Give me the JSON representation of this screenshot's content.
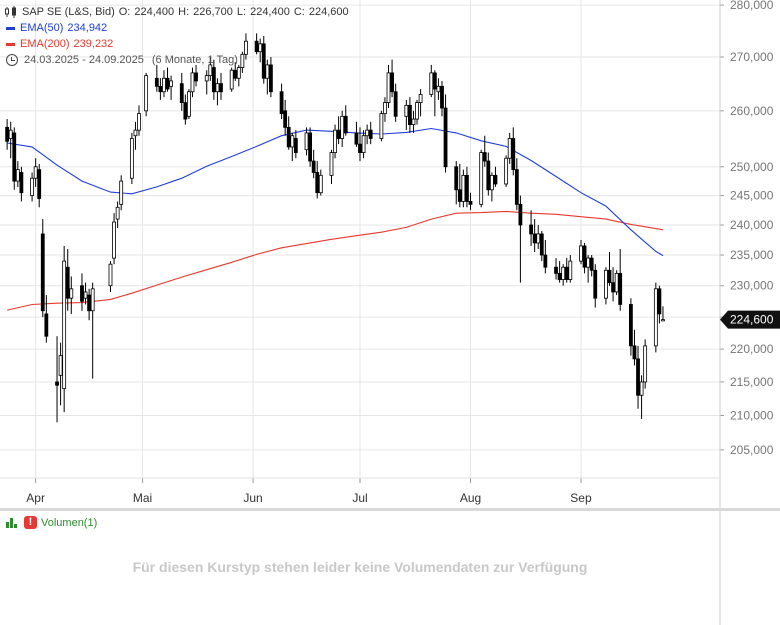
{
  "header": {
    "instrument": "SAP SE (L&S, Bid)",
    "open_label": "O:",
    "open": "224,400",
    "high_label": "H:",
    "high": "226,700",
    "low_label": "L:",
    "low": "224,400",
    "close_label": "C:",
    "close": "224,600",
    "ema50_label": "EMA(50)",
    "ema50_value": "234,942",
    "ema200_label": "EMA(200)",
    "ema200_value": "239,232",
    "range_text": "24.03.2025 - 24.09.2025",
    "period_text": "(6 Monate, 1 Tag)"
  },
  "colors": {
    "candle": "#000000",
    "ema50": "#1e3fd8",
    "ema200": "#e8392e",
    "grid": "#e6e6e6",
    "volume": "#2e8b2e"
  },
  "current_price_label": "224,600",
  "volume": {
    "label": "Volumen(1)",
    "message": "Für diesen Kurstyp stehen leider keine Volumendaten zur Verfügung"
  },
  "chart_data": {
    "type": "candlestick",
    "y_scale": "log",
    "ylim": [
      201000,
      281000
    ],
    "y_ticks": [
      205000,
      210000,
      215000,
      220000,
      225000,
      230000,
      235000,
      240000,
      245000,
      250000,
      260000,
      270000,
      280000
    ],
    "y_tick_labels": [
      "205,000",
      "210,000",
      "215,000",
      "220,000",
      "225,000",
      "230,000",
      "235,000",
      "240,000",
      "245,000",
      "250,000",
      "260,000",
      "270,000",
      "280,000"
    ],
    "x_tick_labels": [
      "Apr",
      "Mai",
      "Jun",
      "Jul",
      "Aug",
      "Sep"
    ],
    "x_tick_dates": [
      "2025-04-01",
      "2025-05-01",
      "2025-06-01",
      "2025-07-01",
      "2025-08-01",
      "2025-09-01"
    ],
    "date_range": [
      "2025-03-24",
      "2025-09-24"
    ],
    "candles": [
      [
        "2025-03-24",
        257.0,
        258.5,
        253.0,
        254.5
      ],
      [
        "2025-03-25",
        255.0,
        258.0,
        251.5,
        256.5
      ],
      [
        "2025-03-26",
        256.0,
        257.0,
        246.0,
        247.5
      ],
      [
        "2025-03-27",
        247.5,
        251.0,
        246.5,
        249.5
      ],
      [
        "2025-03-28",
        249.0,
        250.0,
        244.0,
        245.5
      ],
      [
        "2025-03-31",
        245.0,
        249.0,
        244.0,
        248.0
      ],
      [
        "2025-04-01",
        248.0,
        251.5,
        246.5,
        250.0
      ],
      [
        "2025-04-02",
        249.5,
        250.5,
        243.0,
        244.5
      ],
      [
        "2025-04-03",
        238.5,
        241.0,
        225.0,
        226.0
      ],
      [
        "2025-04-04",
        225.5,
        228.5,
        221.0,
        222.0
      ],
      [
        "2025-04-07",
        215.0,
        222.0,
        209.0,
        214.5
      ],
      [
        "2025-04-08",
        216.0,
        221.0,
        211.5,
        219.0
      ],
      [
        "2025-04-09",
        214.0,
        236.5,
        210.5,
        234.0
      ],
      [
        "2025-04-10",
        233.0,
        236.0,
        226.0,
        228.0
      ],
      [
        "2025-04-11",
        228.0,
        231.5,
        225.5,
        229.5
      ],
      [
        "2025-04-14",
        230.0,
        232.0,
        226.0,
        227.5
      ],
      [
        "2025-04-15",
        228.0,
        230.5,
        227.0,
        229.0
      ],
      [
        "2025-04-16",
        228.5,
        229.5,
        224.5,
        226.0
      ],
      [
        "2025-04-17",
        226.0,
        230.5,
        215.5,
        229.5
      ],
      [
        "2025-04-22",
        230.0,
        234.0,
        229.0,
        233.5
      ],
      [
        "2025-04-23",
        234.5,
        242.0,
        233.5,
        240.5
      ],
      [
        "2025-04-24",
        241.0,
        244.0,
        239.5,
        243.0
      ],
      [
        "2025-04-25",
        243.5,
        248.5,
        242.5,
        247.5
      ],
      [
        "2025-04-28",
        248.0,
        256.0,
        247.0,
        255.0
      ],
      [
        "2025-04-29",
        255.5,
        258.0,
        253.0,
        256.5
      ],
      [
        "2025-04-30",
        256.5,
        261.0,
        255.5,
        259.5
      ],
      [
        "2025-05-02",
        260.0,
        267.0,
        259.0,
        266.5
      ],
      [
        "2025-05-05",
        266.0,
        268.5,
        263.5,
        264.5
      ],
      [
        "2025-05-06",
        264.5,
        266.0,
        262.0,
        263.5
      ],
      [
        "2025-05-07",
        263.5,
        267.5,
        262.5,
        266.0
      ],
      [
        "2025-05-08",
        266.0,
        268.0,
        263.5,
        264.0
      ],
      [
        "2025-05-09",
        264.5,
        266.5,
        262.0,
        265.5
      ],
      [
        "2025-05-12",
        265.0,
        267.0,
        260.0,
        261.5
      ],
      [
        "2025-05-13",
        261.5,
        263.0,
        257.5,
        258.5
      ],
      [
        "2025-05-14",
        259.0,
        264.0,
        258.5,
        263.5
      ],
      [
        "2025-05-15",
        263.5,
        268.0,
        262.5,
        267.0
      ],
      [
        "2025-05-16",
        267.0,
        268.5,
        264.5,
        265.5
      ],
      [
        "2025-05-19",
        265.5,
        267.5,
        263.0,
        266.5
      ],
      [
        "2025-05-20",
        266.5,
        270.0,
        265.5,
        268.5
      ],
      [
        "2025-05-21",
        268.0,
        269.5,
        262.0,
        263.5
      ],
      [
        "2025-05-22",
        263.5,
        266.0,
        261.0,
        265.0
      ],
      [
        "2025-05-23",
        265.0,
        267.0,
        262.0,
        263.5
      ],
      [
        "2025-05-26",
        264.0,
        268.0,
        263.5,
        267.5
      ],
      [
        "2025-05-27",
        267.5,
        269.0,
        265.5,
        266.0
      ],
      [
        "2025-05-28",
        266.0,
        268.5,
        264.5,
        268.0
      ],
      [
        "2025-05-29",
        268.0,
        271.0,
        267.0,
        270.5
      ],
      [
        "2025-05-30",
        270.5,
        274.5,
        269.5,
        273.0
      ],
      [
        "2025-06-02",
        273.0,
        274.5,
        270.5,
        271.0
      ],
      [
        "2025-06-03",
        271.0,
        273.5,
        269.0,
        272.5
      ],
      [
        "2025-06-04",
        272.5,
        274.0,
        265.0,
        266.0
      ],
      [
        "2025-06-05",
        266.0,
        269.5,
        263.0,
        268.5
      ],
      [
        "2025-06-06",
        268.5,
        270.0,
        262.5,
        263.5
      ],
      [
        "2025-06-09",
        263.5,
        265.0,
        258.5,
        259.5
      ],
      [
        "2025-06-10",
        260.0,
        262.0,
        255.5,
        257.0
      ],
      [
        "2025-06-11",
        257.0,
        259.0,
        253.0,
        253.5
      ],
      [
        "2025-06-12",
        253.5,
        256.0,
        251.0,
        255.5
      ],
      [
        "2025-06-13",
        255.0,
        256.5,
        251.5,
        252.5
      ],
      [
        "2025-06-16",
        253.0,
        257.0,
        252.0,
        256.0
      ],
      [
        "2025-06-17",
        256.0,
        257.0,
        250.0,
        251.0
      ],
      [
        "2025-06-18",
        251.0,
        253.0,
        248.0,
        249.0
      ],
      [
        "2025-06-19",
        249.0,
        251.0,
        244.5,
        245.5
      ],
      [
        "2025-06-20",
        245.5,
        249.5,
        245.0,
        248.5
      ],
      [
        "2025-06-23",
        248.5,
        253.0,
        247.0,
        252.5
      ],
      [
        "2025-06-24",
        252.5,
        257.5,
        251.5,
        256.5
      ],
      [
        "2025-06-25",
        256.5,
        259.0,
        254.0,
        255.0
      ],
      [
        "2025-06-26",
        255.0,
        260.0,
        253.5,
        259.0
      ],
      [
        "2025-06-27",
        259.0,
        261.0,
        255.5,
        256.0
      ],
      [
        "2025-06-30",
        256.0,
        258.0,
        253.5,
        254.0
      ],
      [
        "2025-07-01",
        254.0,
        257.0,
        251.0,
        252.5
      ],
      [
        "2025-07-02",
        252.5,
        256.5,
        251.5,
        255.5
      ],
      [
        "2025-07-03",
        255.5,
        257.5,
        254.0,
        256.5
      ],
      [
        "2025-07-04",
        256.5,
        258.0,
        254.0,
        255.0
      ],
      [
        "2025-07-07",
        255.0,
        260.0,
        254.5,
        259.5
      ],
      [
        "2025-07-08",
        259.5,
        262.5,
        258.0,
        261.5
      ],
      [
        "2025-07-09",
        261.5,
        268.5,
        260.5,
        267.0
      ],
      [
        "2025-07-10",
        267.0,
        269.5,
        262.5,
        263.5
      ],
      [
        "2025-07-11",
        263.5,
        265.0,
        258.0,
        259.0
      ],
      [
        "2025-07-14",
        259.0,
        262.0,
        256.5,
        261.0
      ],
      [
        "2025-07-15",
        261.0,
        262.5,
        256.0,
        257.5
      ],
      [
        "2025-07-16",
        257.5,
        260.0,
        256.0,
        258.5
      ],
      [
        "2025-07-17",
        258.5,
        262.0,
        257.5,
        261.5
      ],
      [
        "2025-07-18",
        261.5,
        264.0,
        259.0,
        263.0
      ],
      [
        "2025-07-21",
        263.0,
        268.5,
        262.5,
        267.0
      ],
      [
        "2025-07-22",
        267.0,
        267.5,
        259.0,
        264.0
      ],
      [
        "2025-07-23",
        263.5,
        266.0,
        262.0,
        264.5
      ],
      [
        "2025-07-24",
        264.5,
        265.5,
        259.0,
        260.5
      ],
      [
        "2025-07-25",
        260.5,
        263.0,
        249.0,
        250.0
      ],
      [
        "2025-07-28",
        250.0,
        251.0,
        243.5,
        246.0
      ],
      [
        "2025-07-29",
        246.0,
        250.5,
        243.0,
        244.0
      ],
      [
        "2025-07-30",
        244.0,
        249.5,
        243.0,
        248.5
      ],
      [
        "2025-07-31",
        248.5,
        250.0,
        243.0,
        244.0
      ],
      [
        "2025-08-01",
        244.0,
        245.5,
        242.5,
        243.5
      ],
      [
        "2025-08-04",
        243.5,
        253.0,
        243.0,
        252.5
      ],
      [
        "2025-08-05",
        252.5,
        255.5,
        250.0,
        251.0
      ],
      [
        "2025-08-06",
        251.0,
        252.5,
        245.0,
        246.0
      ],
      [
        "2025-08-07",
        246.0,
        249.0,
        244.0,
        248.5
      ],
      [
        "2025-08-08",
        248.5,
        250.0,
        246.5,
        247.0
      ],
      [
        "2025-08-11",
        247.0,
        252.0,
        246.5,
        251.5
      ],
      [
        "2025-08-12",
        251.5,
        256.0,
        250.5,
        255.0
      ],
      [
        "2025-08-13",
        255.0,
        257.0,
        248.5,
        249.5
      ],
      [
        "2025-08-14",
        249.5,
        251.5,
        242.5,
        243.5
      ],
      [
        "2025-08-15",
        243.5,
        245.0,
        230.5,
        240.0
      ],
      [
        "2025-08-18",
        240.0,
        242.5,
        236.5,
        238.5
      ],
      [
        "2025-08-19",
        238.5,
        241.0,
        235.5,
        237.0
      ],
      [
        "2025-08-20",
        237.0,
        240.0,
        236.0,
        238.5
      ],
      [
        "2025-08-21",
        238.5,
        239.0,
        234.0,
        235.0
      ],
      [
        "2025-08-22",
        235.0,
        237.5,
        232.0,
        233.0
      ],
      [
        "2025-08-25",
        233.0,
        234.5,
        231.0,
        232.0
      ],
      [
        "2025-08-26",
        232.0,
        234.0,
        230.5,
        231.0
      ],
      [
        "2025-08-27",
        231.0,
        233.5,
        230.0,
        233.0
      ],
      [
        "2025-08-28",
        233.0,
        234.5,
        230.5,
        231.0
      ],
      [
        "2025-08-29",
        231.0,
        235.0,
        230.5,
        234.0
      ],
      [
        "2025-09-01",
        234.0,
        237.5,
        233.5,
        236.5
      ],
      [
        "2025-09-02",
        236.5,
        237.0,
        232.0,
        233.0
      ],
      [
        "2025-09-03",
        233.0,
        235.0,
        230.5,
        234.5
      ],
      [
        "2025-09-04",
        234.5,
        235.0,
        231.5,
        232.5
      ],
      [
        "2025-09-05",
        232.5,
        233.5,
        226.5,
        228.0
      ],
      [
        "2025-09-08",
        228.0,
        233.0,
        227.0,
        232.5
      ],
      [
        "2025-09-09",
        232.5,
        235.5,
        230.0,
        230.5
      ],
      [
        "2025-09-10",
        230.5,
        233.0,
        227.5,
        229.0
      ],
      [
        "2025-09-11",
        229.0,
        232.5,
        228.5,
        232.0
      ],
      [
        "2025-09-12",
        232.0,
        236.0,
        226.0,
        227.0
      ],
      [
        "2025-09-15",
        227.0,
        228.0,
        219.0,
        220.5
      ],
      [
        "2025-09-16",
        220.5,
        223.0,
        217.5,
        218.5
      ],
      [
        "2025-09-17",
        218.5,
        220.5,
        211.0,
        213.0
      ],
      [
        "2025-09-18",
        213.0,
        216.0,
        209.5,
        215.0
      ],
      [
        "2025-09-19",
        215.0,
        221.5,
        214.0,
        220.5
      ],
      [
        "2025-09-22",
        220.5,
        230.5,
        219.5,
        229.5
      ],
      [
        "2025-09-23",
        229.5,
        230.0,
        224.0,
        225.5
      ],
      [
        "2025-09-24",
        224.4,
        226.7,
        224.4,
        224.6
      ]
    ],
    "ema50": [
      [
        "2025-03-24",
        254.2
      ],
      [
        "2025-03-31",
        253.5
      ],
      [
        "2025-04-07",
        250.3
      ],
      [
        "2025-04-14",
        247.5
      ],
      [
        "2025-04-22",
        245.6
      ],
      [
        "2025-04-28",
        245.3
      ],
      [
        "2025-05-05",
        246.5
      ],
      [
        "2025-05-12",
        248.0
      ],
      [
        "2025-05-19",
        250.1
      ],
      [
        "2025-05-26",
        251.8
      ],
      [
        "2025-06-02",
        253.6
      ],
      [
        "2025-06-09",
        255.5
      ],
      [
        "2025-06-16",
        256.5
      ],
      [
        "2025-06-23",
        256.3
      ],
      [
        "2025-06-30",
        256.0
      ],
      [
        "2025-07-07",
        255.8
      ],
      [
        "2025-07-14",
        256.1
      ],
      [
        "2025-07-21",
        256.8
      ],
      [
        "2025-07-28",
        256.0
      ],
      [
        "2025-08-04",
        254.6
      ],
      [
        "2025-08-11",
        253.6
      ],
      [
        "2025-08-18",
        251.1
      ],
      [
        "2025-08-25",
        248.3
      ],
      [
        "2025-09-01",
        245.5
      ],
      [
        "2025-09-08",
        243.2
      ],
      [
        "2025-09-15",
        239.2
      ],
      [
        "2025-09-22",
        235.6
      ],
      [
        "2025-09-24",
        234.9
      ]
    ],
    "ema200": [
      [
        "2025-03-24",
        226.1
      ],
      [
        "2025-03-31",
        227.0
      ],
      [
        "2025-04-07",
        227.2
      ],
      [
        "2025-04-14",
        227.3
      ],
      [
        "2025-04-22",
        227.8
      ],
      [
        "2025-04-28",
        228.8
      ],
      [
        "2025-05-05",
        230.1
      ],
      [
        "2025-05-12",
        231.4
      ],
      [
        "2025-05-19",
        232.6
      ],
      [
        "2025-05-26",
        233.8
      ],
      [
        "2025-06-02",
        235.1
      ],
      [
        "2025-06-09",
        236.2
      ],
      [
        "2025-06-16",
        236.9
      ],
      [
        "2025-06-23",
        237.6
      ],
      [
        "2025-06-30",
        238.2
      ],
      [
        "2025-07-07",
        238.8
      ],
      [
        "2025-07-14",
        239.6
      ],
      [
        "2025-07-21",
        241.0
      ],
      [
        "2025-07-28",
        242.0
      ],
      [
        "2025-08-04",
        242.1
      ],
      [
        "2025-08-11",
        242.3
      ],
      [
        "2025-08-18",
        242.0
      ],
      [
        "2025-08-25",
        241.8
      ],
      [
        "2025-09-01",
        241.4
      ],
      [
        "2025-09-08",
        241.0
      ],
      [
        "2025-09-15",
        240.1
      ],
      [
        "2025-09-22",
        239.4
      ],
      [
        "2025-09-24",
        239.2
      ]
    ],
    "last_price": 224.6
  }
}
